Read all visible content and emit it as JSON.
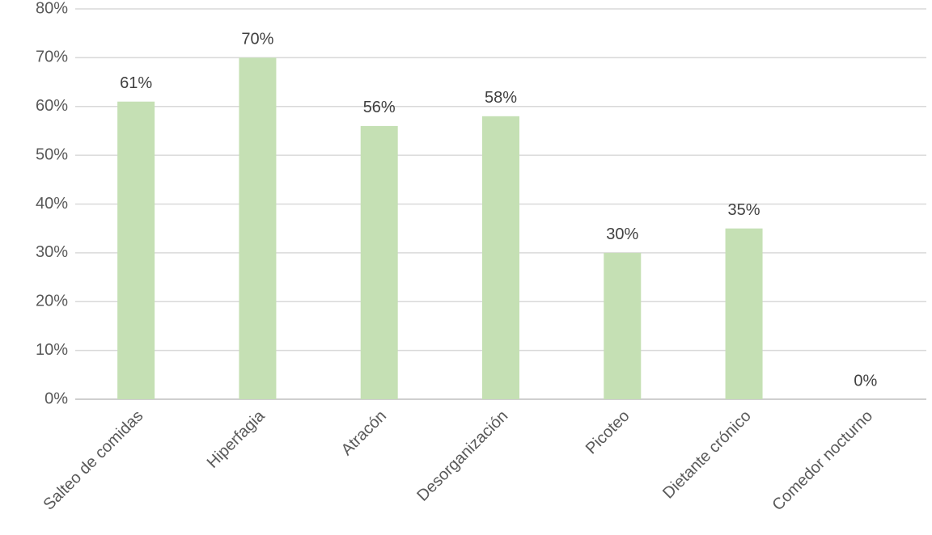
{
  "chart_data": {
    "type": "bar",
    "categories": [
      "Salteo de comidas",
      "Hiperfagia",
      "Atracón",
      "Desorganización",
      "Picoteo",
      "Dietante crónico",
      "Comedor nocturno"
    ],
    "values": [
      61,
      70,
      56,
      58,
      30,
      35,
      0
    ],
    "value_labels": [
      "61%",
      "70%",
      "56%",
      "58%",
      "30%",
      "35%",
      "0%"
    ],
    "color": "#c5e0b4",
    "ylim": [
      0,
      80
    ],
    "yticks": [
      {
        "value": 0,
        "label": "0%"
      },
      {
        "value": 10,
        "label": "10%"
      },
      {
        "value": 20,
        "label": "20%"
      },
      {
        "value": 30,
        "label": "30%"
      },
      {
        "value": 40,
        "label": "40%"
      },
      {
        "value": 50,
        "label": "50%"
      },
      {
        "value": 60,
        "label": "60%"
      },
      {
        "value": 70,
        "label": "70%"
      },
      {
        "value": 80,
        "label": "80%"
      }
    ],
    "grid": true
  }
}
